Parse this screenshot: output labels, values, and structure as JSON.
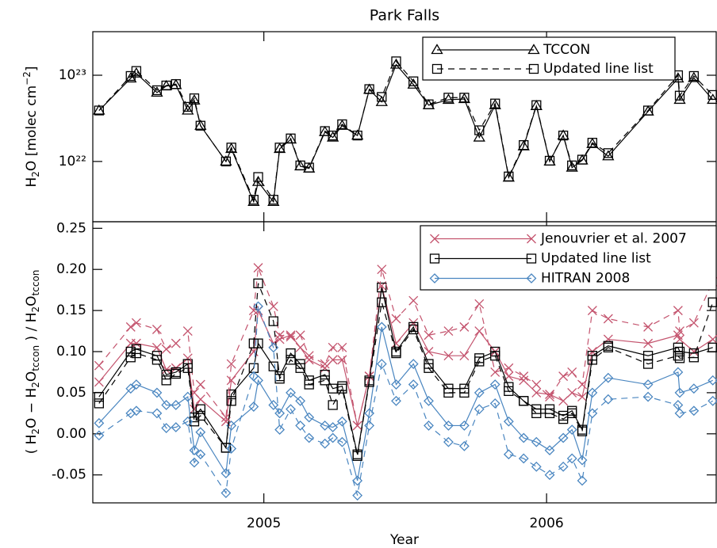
{
  "chart_data": [
    {
      "type": "line",
      "title": "Park Falls",
      "ylabel": [
        {
          "text": "H"
        },
        {
          "text": "2",
          "sub": true
        },
        {
          "text": "O [molec cm"
        },
        {
          "text": "−2",
          "sup": true
        },
        {
          "text": "]"
        }
      ],
      "yscale": "log",
      "x": [
        2004.417,
        2004.529,
        2004.549,
        2004.622,
        2004.655,
        2004.689,
        2004.731,
        2004.754,
        2004.776,
        2004.866,
        2004.885,
        2004.964,
        2004.98,
        2005.034,
        2005.056,
        2005.095,
        2005.129,
        2005.16,
        2005.216,
        2005.244,
        2005.277,
        2005.331,
        2005.373,
        2005.417,
        2005.468,
        2005.529,
        2005.583,
        2005.653,
        2005.709,
        2005.762,
        2005.818,
        2005.866,
        2005.919,
        2005.964,
        2006.011,
        2006.059,
        2006.09,
        2006.126,
        2006.162,
        2006.218,
        2006.359,
        2006.465,
        2006.471,
        2006.521,
        2006.588
      ],
      "xlim": [
        2004.395,
        2006.6
      ],
      "xticks": [
        2005,
        2006
      ],
      "xtick_labels": false,
      "ylim": [
        2e+21,
        3.2e+23
      ],
      "yticks": [
        {
          "value": 1e+22,
          "label": "10²²"
        },
        {
          "value": 1e+23,
          "label": "10²³"
        }
      ],
      "legend": "upper right",
      "series": [
        {
          "name": "TCCON",
          "color": "#000000",
          "marker": "triangle",
          "dash": false,
          "values": [
            3.9e+22,
            9.2e+22,
            1.05e+23,
            6.3e+22,
            7.5e+22,
            7.7e+22,
            3.9e+22,
            5.1e+22,
            2.6e+22,
            1e+22,
            1.4e+22,
            3.4e+21,
            5.8e+21,
            3.4e+21,
            1.4e+22,
            1.8e+22,
            8.8e+21,
            8.3e+21,
            2.2e+22,
            1.9e+22,
            2.6e+22,
            2e+22,
            6.8e+22,
            4.9e+22,
            1.33e+23,
            7.8e+22,
            4.5e+22,
            5.2e+22,
            5.3e+22,
            1.9e+22,
            4.5e+22,
            6.5e+21,
            1.5e+22,
            4.4e+22,
            1e+22,
            2e+22,
            8.5e+21,
            1.03e+22,
            1.6e+22,
            1.15e+22,
            3.8e+22,
            9.2e+22,
            5.2e+22,
            9.3e+22,
            5.2e+22
          ]
        },
        {
          "name": "Updated line list",
          "color": "#000000",
          "marker": "square",
          "dash": true,
          "values": [
            3.9e+22,
            9.8e+22,
            1.12e+23,
            6.7e+22,
            7.6e+22,
            7.9e+22,
            4.3e+22,
            5.4e+22,
            2.6e+22,
            1e+22,
            1.45e+22,
            3.6e+21,
            6.6e+21,
            3.6e+21,
            1.45e+22,
            1.85e+22,
            9e+21,
            8.5e+21,
            2.25e+22,
            2e+22,
            2.7e+22,
            2e+22,
            6.9e+22,
            5.6e+22,
            1.45e+23,
            8.5e+22,
            4.6e+22,
            5.5e+22,
            5.5e+22,
            2.3e+22,
            4.7e+22,
            6.7e+21,
            1.55e+22,
            4.5e+22,
            1.02e+22,
            2e+22,
            9e+21,
            1.05e+22,
            1.65e+22,
            1.25e+22,
            3.9e+22,
            1e+23,
            5.8e+22,
            9.8e+22,
            5.9e+22
          ]
        }
      ]
    },
    {
      "type": "line",
      "xlabel": "Year",
      "ylabel": [
        {
          "text": "( H"
        },
        {
          "text": "2",
          "sub": true
        },
        {
          "text": "O − H"
        },
        {
          "text": "2",
          "sub": true
        },
        {
          "text": "O"
        },
        {
          "text": "tccon",
          "sub": true
        },
        {
          "text": " ) / H"
        },
        {
          "text": "2",
          "sub": true
        },
        {
          "text": "O"
        },
        {
          "text": "tccon",
          "sub": true
        }
      ],
      "x": [
        2004.417,
        2004.529,
        2004.549,
        2004.622,
        2004.655,
        2004.689,
        2004.731,
        2004.754,
        2004.776,
        2004.866,
        2004.885,
        2004.964,
        2004.98,
        2005.034,
        2005.056,
        2005.095,
        2005.129,
        2005.16,
        2005.216,
        2005.244,
        2005.277,
        2005.331,
        2005.373,
        2005.417,
        2005.468,
        2005.529,
        2005.583,
        2005.653,
        2005.709,
        2005.762,
        2005.818,
        2005.866,
        2005.919,
        2005.964,
        2006.011,
        2006.059,
        2006.09,
        2006.126,
        2006.162,
        2006.218,
        2006.359,
        2006.465,
        2006.471,
        2006.521,
        2006.588
      ],
      "xlim": [
        2004.395,
        2006.6
      ],
      "xticks": [
        2005,
        2006
      ],
      "ylim": [
        -0.084,
        0.258
      ],
      "yticks": [
        -0.05,
        {
          "value": 0.0,
          "label": "0.00"
        },
        0.05,
        {
          "value": 0.1,
          "label": "0.10"
        },
        0.15,
        {
          "value": 0.2,
          "label": "0.20"
        },
        0.25
      ],
      "legend": "upper right",
      "series": [
        {
          "name": "Jenouvrier et al. 2007",
          "color": "#c4546e",
          "marker": "x",
          "dash": false,
          "values": [
            0.063,
            0.11,
            0.11,
            0.105,
            0.078,
            0.08,
            0.092,
            0.03,
            0.042,
            0.015,
            0.065,
            0.1,
            0.15,
            0.11,
            0.115,
            0.12,
            0.105,
            0.09,
            0.08,
            0.09,
            0.09,
            0.01,
            0.07,
            0.18,
            0.11,
            0.135,
            0.1,
            0.095,
            0.095,
            0.125,
            0.1,
            0.07,
            0.065,
            0.05,
            0.048,
            0.04,
            0.05,
            0.045,
            0.1,
            0.115,
            0.11,
            0.12,
            0.115,
            0.1,
            0.115
          ]
        },
        {
          "name": "Updated line list",
          "color": "#000000",
          "marker": "square",
          "dash": false,
          "values": [
            0.045,
            0.1,
            0.103,
            0.095,
            0.072,
            0.075,
            0.085,
            0.02,
            0.03,
            -0.017,
            0.048,
            0.08,
            0.11,
            0.082,
            0.07,
            0.098,
            0.085,
            0.065,
            0.072,
            0.055,
            0.058,
            -0.025,
            0.065,
            0.178,
            0.1,
            0.13,
            0.085,
            0.055,
            0.055,
            0.092,
            0.1,
            0.057,
            0.04,
            0.03,
            0.03,
            0.022,
            0.028,
            0.005,
            0.095,
            0.107,
            0.095,
            0.105,
            0.1,
            0.098,
            0.105
          ]
        },
        {
          "name": "HITRAN 2008",
          "color": "#4a86c0",
          "marker": "diamond",
          "dash": false,
          "values": [
            0.013,
            0.055,
            0.06,
            0.05,
            0.035,
            0.035,
            0.045,
            -0.02,
            0.002,
            -0.048,
            0.01,
            0.033,
            0.065,
            0.035,
            0.025,
            0.05,
            0.04,
            0.02,
            0.01,
            0.008,
            0.015,
            -0.057,
            0.025,
            0.13,
            0.06,
            0.085,
            0.04,
            0.01,
            0.01,
            0.05,
            0.06,
            0.015,
            -0.005,
            -0.01,
            -0.02,
            -0.005,
            0.005,
            -0.032,
            0.05,
            0.068,
            0.06,
            0.075,
            0.05,
            0.055,
            0.065
          ]
        },
        {
          "color": "#c4546e",
          "marker": "x",
          "dash": true,
          "values": [
            0.083,
            0.13,
            0.135,
            0.127,
            0.103,
            0.11,
            0.125,
            0.05,
            0.06,
            0.02,
            0.085,
            0.15,
            0.202,
            0.155,
            0.12,
            0.118,
            0.12,
            0.095,
            0.085,
            0.105,
            0.105,
            0.01,
            0.07,
            0.2,
            0.14,
            0.162,
            0.12,
            0.125,
            0.13,
            0.158,
            0.075,
            0.08,
            0.07,
            0.06,
            0.045,
            0.07,
            0.075,
            0.06,
            0.15,
            0.14,
            0.13,
            0.15,
            0.125,
            0.135,
            0.185
          ]
        },
        {
          "color": "#000000",
          "marker": "square",
          "dash": true,
          "values": [
            0.037,
            0.093,
            0.098,
            0.09,
            0.065,
            0.073,
            0.08,
            0.015,
            0.022,
            -0.017,
            0.04,
            0.11,
            0.183,
            0.137,
            0.067,
            0.09,
            0.08,
            0.06,
            0.065,
            0.035,
            0.055,
            -0.027,
            0.063,
            0.16,
            0.098,
            0.127,
            0.08,
            0.05,
            0.05,
            0.088,
            0.095,
            0.052,
            0.04,
            0.025,
            0.025,
            0.018,
            0.025,
            0.003,
            0.09,
            0.105,
            0.085,
            0.095,
            0.092,
            0.093,
            0.16
          ]
        },
        {
          "color": "#4a86c0",
          "marker": "diamond",
          "dash": true,
          "values": [
            -0.002,
            0.025,
            0.028,
            0.025,
            0.007,
            0.008,
            0.015,
            -0.035,
            -0.025,
            -0.072,
            -0.018,
            0.07,
            0.155,
            0.105,
            0.005,
            0.03,
            0.01,
            -0.005,
            -0.012,
            -0.005,
            -0.01,
            -0.075,
            0.01,
            0.085,
            0.04,
            0.06,
            0.01,
            -0.01,
            -0.015,
            0.03,
            0.037,
            -0.025,
            -0.03,
            -0.04,
            -0.05,
            -0.04,
            -0.03,
            -0.057,
            0.025,
            0.042,
            0.045,
            0.035,
            0.025,
            0.028,
            0.04
          ]
        }
      ]
    }
  ]
}
